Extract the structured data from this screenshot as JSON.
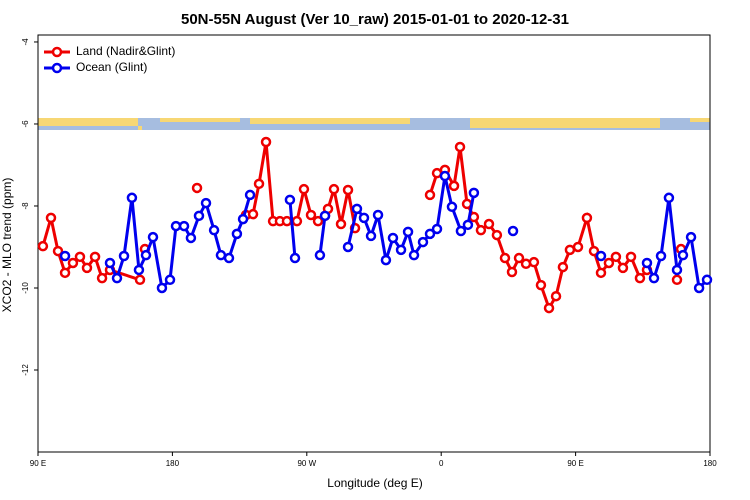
{
  "chart_data": {
    "type": "line",
    "title": "50N-55N August (Ver 10_raw)   2015-01-01 to 2020-12-31",
    "xlabel": "Longitude (deg E)",
    "ylabel": "XCO2 - MLO trend (ppm)",
    "xlim": [
      90,
      540
    ],
    "ylim": [
      -14,
      -3.83
    ],
    "xticks": [
      {
        "value": 90,
        "label": "90 E"
      },
      180,
      {
        "value": 270,
        "label": "90 W"
      },
      {
        "value": 360,
        "label": "0"
      },
      {
        "value": 450,
        "label": "90 E"
      },
      {
        "value": 540,
        "label": "180"
      }
    ],
    "yticks": [
      -4,
      -6,
      -8,
      -10,
      -12
    ],
    "legend": "upper left",
    "series": [
      {
        "name": "Land (Nadir&Glint)",
        "color": "#ee0000",
        "x": [
          93.3,
          98.7,
          103.4,
          108.1,
          113.4,
          118.1,
          122.8,
          128.2,
          132.9,
          138.2,
          158.3,
          null,
          161.6,
          null,
          196.5,
          null,
          229.3,
          234.0,
          238.0,
          242.7,
          247.4,
          252.0,
          256.7,
          263.4,
          268.1,
          272.8,
          277.5,
          282.2,
          284.2,
          288.2,
          292.9,
          297.6,
          302.3,
          null,
          352.5,
          357.2,
          362.5,
          368.6,
          372.6,
          377.3,
          381.9,
          386.6,
          392.0,
          397.3,
          402.7,
          407.4,
          412.1,
          416.8,
          422.1,
          426.8,
          432.2,
          436.9,
          441.5,
          446.2,
          451.6,
          457.6,
          462.3,
          467.0,
          472.3,
          477.0,
          481.7,
          487.1,
          493.1,
          497.8,
          null,
          517.9,
          null,
          520.6
        ],
        "values": [
          -8.98,
          -8.29,
          -9.1,
          -9.63,
          -9.39,
          -9.24,
          -9.51,
          -9.24,
          -9.76,
          -9.56,
          -9.8,
          null,
          -9.05,
          null,
          -7.56,
          null,
          -8.22,
          -8.2,
          -7.46,
          -6.44,
          -8.37,
          -8.37,
          -8.37,
          -8.37,
          -7.59,
          -8.22,
          -8.37,
          -8.24,
          -8.07,
          -7.59,
          -8.44,
          -7.61,
          -8.54,
          null,
          -7.73,
          -7.2,
          -7.12,
          -7.51,
          -6.56,
          -7.95,
          -8.27,
          -8.59,
          -8.44,
          -8.71,
          -9.27,
          -9.61,
          -9.27,
          -9.41,
          -9.37,
          -9.93,
          -10.49,
          -10.2,
          -9.49,
          -9.07,
          -9.0,
          -8.29,
          -9.1,
          -9.63,
          -9.39,
          -9.24,
          -9.51,
          -9.24,
          -9.76,
          -9.56,
          null,
          -9.8,
          null,
          -9.05
        ]
      },
      {
        "name": "Ocean (Glint)",
        "color": "#0000ee",
        "x": [
          108.1,
          null,
          138.2,
          142.9,
          147.6,
          152.9,
          157.6,
          162.3,
          167.0,
          173.0,
          178.4,
          182.4,
          187.8,
          192.4,
          197.8,
          202.5,
          207.9,
          212.5,
          217.9,
          223.2,
          227.3,
          232.0,
          null,
          258.7,
          262.1,
          null,
          278.8,
          282.2,
          null,
          297.6,
          303.6,
          308.3,
          313.0,
          317.7,
          323.0,
          327.7,
          333.1,
          337.8,
          341.8,
          347.8,
          352.5,
          357.2,
          362.5,
          367.2,
          373.2,
          377.9,
          381.9,
          null,
          408.1,
          null,
          467.0,
          null,
          497.8,
          502.5,
          507.2,
          512.5,
          517.9,
          521.9,
          527.3,
          532.7,
          538.0
        ],
        "values": [
          -9.22,
          null,
          -9.39,
          -9.76,
          -9.22,
          -7.8,
          -9.56,
          -9.2,
          -8.76,
          -10.0,
          -9.8,
          -8.49,
          -8.49,
          -8.78,
          -8.24,
          -7.93,
          -8.59,
          -9.2,
          -9.27,
          -8.68,
          -8.32,
          -7.73,
          null,
          -7.85,
          -9.27,
          null,
          -9.2,
          -8.24,
          null,
          -9.0,
          -8.07,
          -8.29,
          -8.73,
          -8.22,
          -9.32,
          -8.78,
          -9.07,
          -8.63,
          -9.2,
          -8.88,
          -8.68,
          -8.56,
          -7.27,
          -8.02,
          -8.61,
          -8.46,
          -7.68,
          null,
          -8.61,
          null,
          -9.22,
          null,
          -9.39,
          -9.76,
          -9.22,
          -7.8,
          -9.56,
          -9.2,
          -8.76,
          -10.0,
          -9.8
        ]
      }
    ]
  }
}
